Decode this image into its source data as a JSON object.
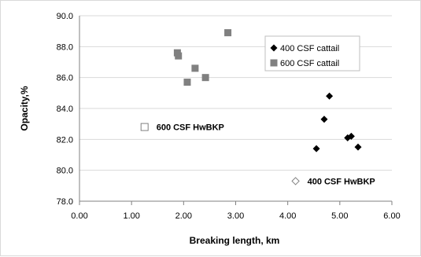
{
  "chart_data": {
    "type": "scatter",
    "xlabel": "Breaking length, km",
    "ylabel": "Opacity,%",
    "xlim": [
      0,
      6
    ],
    "ylim": [
      78,
      90
    ],
    "x_ticks": [
      "0.00",
      "1.00",
      "2.00",
      "3.00",
      "4.00",
      "5.00",
      "6.00"
    ],
    "y_ticks": [
      "78.0",
      "80.0",
      "82.0",
      "84.0",
      "86.0",
      "88.0",
      "90.0"
    ],
    "grid": "horizontal",
    "legend_position": "top-right",
    "series": [
      {
        "name": "400 CSF cattail",
        "marker": "diamond",
        "color": "#000000",
        "points": [
          {
            "x": 4.55,
            "y": 81.4
          },
          {
            "x": 4.7,
            "y": 83.3
          },
          {
            "x": 4.8,
            "y": 84.8
          },
          {
            "x": 5.15,
            "y": 82.1
          },
          {
            "x": 5.22,
            "y": 82.2
          },
          {
            "x": 5.35,
            "y": 81.5
          }
        ]
      },
      {
        "name": "600 CSF cattail",
        "marker": "square",
        "color": "#808080",
        "points": [
          {
            "x": 1.88,
            "y": 87.6
          },
          {
            "x": 1.9,
            "y": 87.4
          },
          {
            "x": 2.07,
            "y": 85.7
          },
          {
            "x": 2.22,
            "y": 86.6
          },
          {
            "x": 2.42,
            "y": 86.0
          },
          {
            "x": 2.85,
            "y": 88.9
          }
        ]
      }
    ],
    "annotations": [
      {
        "label": "600 CSF HwBKP",
        "x": 1.25,
        "y": 82.8,
        "marker": "square-open",
        "color": "#808080"
      },
      {
        "label": "400 CSF HwBKP",
        "x": 4.15,
        "y": 79.3,
        "marker": "diamond-open",
        "color": "#808080"
      }
    ]
  }
}
